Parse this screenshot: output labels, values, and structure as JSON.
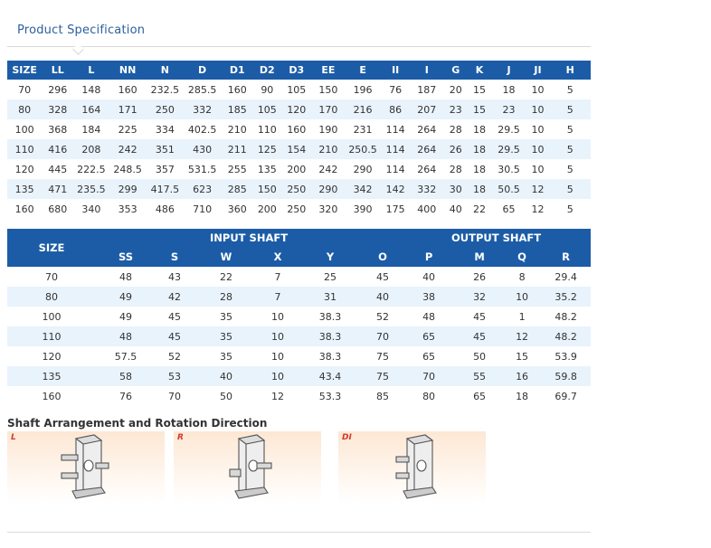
{
  "section_title": "Product Specification",
  "dims_table": {
    "headers": [
      "SIZE",
      "LL",
      "L",
      "NN",
      "N",
      "D",
      "D1",
      "D2",
      "D3",
      "EE",
      "E",
      "II",
      "I",
      "G",
      "K",
      "J",
      "JI",
      "H"
    ],
    "rows": [
      [
        "70",
        "296",
        "148",
        "160",
        "232.5",
        "285.5",
        "160",
        "90",
        "105",
        "150",
        "196",
        "76",
        "187",
        "20",
        "15",
        "18",
        "10",
        "5"
      ],
      [
        "80",
        "328",
        "164",
        "171",
        "250",
        "332",
        "185",
        "105",
        "120",
        "170",
        "216",
        "86",
        "207",
        "23",
        "15",
        "23",
        "10",
        "5"
      ],
      [
        "100",
        "368",
        "184",
        "225",
        "334",
        "402.5",
        "210",
        "110",
        "160",
        "190",
        "231",
        "114",
        "264",
        "28",
        "18",
        "29.5",
        "10",
        "5"
      ],
      [
        "110",
        "416",
        "208",
        "242",
        "351",
        "430",
        "211",
        "125",
        "154",
        "210",
        "250.5",
        "114",
        "264",
        "26",
        "18",
        "29.5",
        "10",
        "5"
      ],
      [
        "120",
        "445",
        "222.5",
        "248.5",
        "357",
        "531.5",
        "255",
        "135",
        "200",
        "242",
        "290",
        "114",
        "264",
        "28",
        "18",
        "30.5",
        "10",
        "5"
      ],
      [
        "135",
        "471",
        "235.5",
        "299",
        "417.5",
        "623",
        "285",
        "150",
        "250",
        "290",
        "342",
        "142",
        "332",
        "30",
        "18",
        "50.5",
        "12",
        "5"
      ],
      [
        "160",
        "680",
        "340",
        "353",
        "486",
        "710",
        "360",
        "200",
        "250",
        "320",
        "390",
        "175",
        "400",
        "40",
        "22",
        "65",
        "12",
        "5"
      ]
    ]
  },
  "shaft_table": {
    "size_header": "SIZE",
    "input_group": "INPUT SHAFT",
    "output_group": "OUTPUT SHAFT",
    "sub_headers": [
      "SS",
      "S",
      "W",
      "X",
      "Y",
      "O",
      "P",
      "M",
      "Q",
      "R"
    ],
    "rows": [
      [
        "70",
        "48",
        "43",
        "22",
        "7",
        "25",
        "45",
        "40",
        "26",
        "8",
        "29.4"
      ],
      [
        "80",
        "49",
        "42",
        "28",
        "7",
        "31",
        "40",
        "38",
        "32",
        "10",
        "35.2"
      ],
      [
        "100",
        "49",
        "45",
        "35",
        "10",
        "38.3",
        "52",
        "48",
        "45",
        "1",
        "48.2"
      ],
      [
        "110",
        "48",
        "45",
        "35",
        "10",
        "38.3",
        "70",
        "65",
        "45",
        "12",
        "48.2"
      ],
      [
        "120",
        "57.5",
        "52",
        "35",
        "10",
        "38.3",
        "75",
        "65",
        "50",
        "15",
        "53.9"
      ],
      [
        "135",
        "58",
        "53",
        "40",
        "10",
        "43.4",
        "75",
        "70",
        "55",
        "16",
        "59.8"
      ],
      [
        "160",
        "76",
        "70",
        "50",
        "12",
        "53.3",
        "85",
        "80",
        "65",
        "18",
        "69.7"
      ]
    ]
  },
  "arrangement": {
    "title": "Shaft Arrangement and Rotation Direction",
    "panels": [
      {
        "label": "L",
        "icon": "gearbox-left-shaft-icon"
      },
      {
        "label": "R",
        "icon": "gearbox-right-shaft-icon"
      },
      {
        "label": "DI",
        "icon": "gearbox-dual-shaft-icon"
      }
    ],
    "label_color": "#d23a2a"
  },
  "colors": {
    "header_bg": "#1c5ca7",
    "stripe_bg": "#e9f3fc",
    "title_color": "#2c5f9e"
  }
}
